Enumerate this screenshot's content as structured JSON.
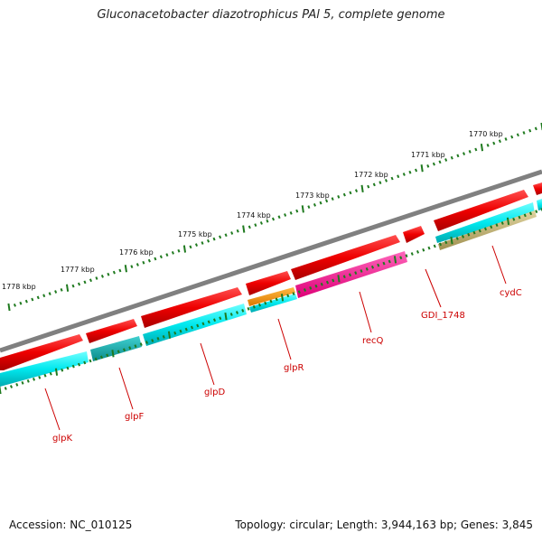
{
  "title": "Gluconacetobacter diazotrophicus PAl 5, complete genome",
  "footer": {
    "accession": "Accession: NC_010125",
    "summary": "Topology: circular; Length: 3,944,163 bp; Genes: 3,845"
  },
  "colors": {
    "backbone": "#808080",
    "gene_forward": "#ee0000",
    "gene_cyan": "#00e8ee",
    "gene_teal": "#10b0b0",
    "gene_orange": "#ff9900",
    "gene_magenta": "#ff1493",
    "gene_khaki": "#c0b070",
    "tick": "#1f7a1f",
    "label": "#cc0000"
  },
  "scale_labels": [
    "1778 kbp",
    "1777 kbp",
    "1776 kbp",
    "1775 kbp",
    "1774 kbp",
    "1773 kbp",
    "1772 kbp",
    "1771 kbp",
    "1770 kbp"
  ],
  "gene_labels": [
    "glpK",
    "glpF",
    "glpD",
    "glpR",
    "recQ",
    "GDI_1748",
    "cydC"
  ]
}
